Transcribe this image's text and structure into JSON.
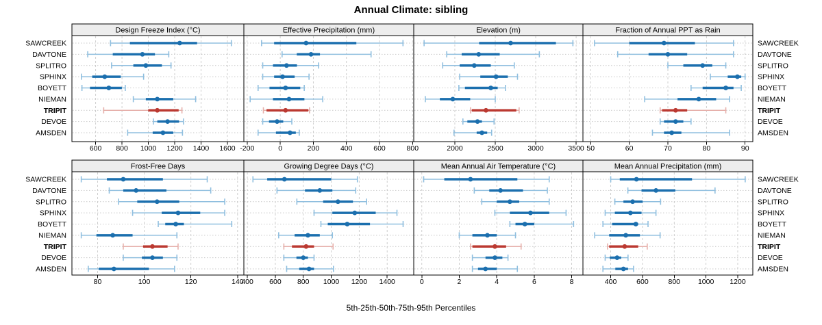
{
  "title": "Annual Climate: sibling",
  "caption": "5th-25th-50th-75th-95th Percentiles",
  "colors": {
    "series_blue": "#1b6fae",
    "series_blue_light": "#90bfdf",
    "highlight_red": "#bb3931",
    "highlight_red_light": "#e6b0ab",
    "grid": "#c9c9c9",
    "strip_bg": "#ededed",
    "panel_border": "#000000",
    "text": "#000000"
  },
  "chart_data": {
    "type": "dotplot-percentiles",
    "title": "Annual Climate: sibling",
    "caption": "5th-25th-50th-75th-95th Percentiles",
    "percentile_labels": [
      "5th",
      "25th",
      "50th",
      "75th",
      "95th"
    ],
    "legend_position": "none",
    "grid": "dashed",
    "stations": [
      "SAWCREEK",
      "DAVTONE",
      "SPLITRO",
      "SPHINX",
      "BOYETT",
      "NIEMAN",
      "TRIPIT",
      "DEVOE",
      "AMSDEN"
    ],
    "highlight_station": "TRIPIT",
    "panels": [
      {
        "title": "Design Freeze Index (°C)",
        "row": 0,
        "col": 0,
        "xlim": [
          420,
          1725
        ],
        "ticks": [
          600,
          800,
          1000,
          1200,
          1400,
          1600
        ],
        "values": [
          [
            713,
            860,
            1238,
            1370,
            1630
          ],
          [
            540,
            730,
            955,
            1050,
            1155
          ],
          [
            721,
            886,
            981,
            1103,
            1172
          ],
          [
            492,
            574,
            669,
            791,
            964
          ],
          [
            496,
            557,
            700,
            799,
            825
          ],
          [
            886,
            981,
            1068,
            1189,
            1359
          ],
          [
            661,
            999,
            1068,
            1230,
            1255
          ],
          [
            1038,
            1068,
            1146,
            1233,
            1267
          ],
          [
            843,
            1033,
            1111,
            1189,
            1259
          ]
        ]
      },
      {
        "title": "Effective Precipitation (mm)",
        "row": 0,
        "col": 1,
        "xlim": [
          -220,
          807
        ],
        "ticks": [
          -200,
          0,
          200,
          400,
          600,
          800
        ],
        "values": [
          [
            -113,
            -37,
            156,
            460,
            742
          ],
          [
            11,
            100,
            186,
            240,
            549
          ],
          [
            -106,
            -44,
            38,
            101,
            232
          ],
          [
            -106,
            -37,
            14,
            87,
            174
          ],
          [
            -134,
            -65,
            32,
            121,
            145
          ],
          [
            -182,
            -44,
            53,
            146,
            257
          ],
          [
            -102,
            -83,
            32,
            170,
            177
          ],
          [
            -106,
            -68,
            -19,
            18,
            70
          ],
          [
            -134,
            -26,
            59,
            94,
            115
          ]
        ]
      },
      {
        "title": "Elevation (m)",
        "row": 0,
        "col": 2,
        "xlim": [
          1492,
          3584
        ],
        "ticks": [
          2000,
          2500,
          3000,
          3500
        ],
        "values": [
          [
            1620,
            2300,
            2690,
            3250,
            3460
          ],
          [
            1900,
            2085,
            2295,
            2555,
            3045
          ],
          [
            1850,
            2060,
            2240,
            2445,
            2735
          ],
          [
            2060,
            2315,
            2510,
            2655,
            2775
          ],
          [
            2050,
            2125,
            2445,
            2530,
            2625
          ],
          [
            1635,
            1815,
            1975,
            2190,
            2500
          ],
          [
            2195,
            2210,
            2385,
            2760,
            2795
          ],
          [
            2100,
            2155,
            2280,
            2335,
            2485
          ],
          [
            1990,
            2270,
            2335,
            2400,
            2455
          ]
        ]
      },
      {
        "title": "Fraction of Annual PPT as Rain",
        "row": 0,
        "col": 3,
        "xlim": [
          48,
          92
        ],
        "ticks": [
          50,
          60,
          70,
          80,
          90
        ],
        "values": [
          [
            51,
            60,
            69,
            77,
            87
          ],
          [
            57,
            65,
            70,
            75,
            87
          ],
          [
            70,
            74,
            79,
            81.5,
            85
          ],
          [
            81,
            85.5,
            88,
            89,
            90
          ],
          [
            76,
            79,
            85,
            87,
            89
          ],
          [
            64,
            72.5,
            78,
            82.5,
            86
          ],
          [
            68,
            68.5,
            72,
            75,
            85
          ],
          [
            68,
            69,
            72,
            74,
            76
          ],
          [
            66,
            69,
            71,
            73.5,
            86
          ]
        ]
      },
      {
        "title": "Frost-Free Days",
        "row": 1,
        "col": 0,
        "xlim": [
          69,
          142.7
        ],
        "ticks": [
          80,
          100,
          120,
          140
        ],
        "values": [
          [
            73,
            84,
            91,
            108,
            127
          ],
          [
            85,
            91,
            96.5,
            109.5,
            128.5
          ],
          [
            89,
            97,
            105.5,
            115,
            134.5
          ],
          [
            95,
            107.5,
            114.5,
            124,
            134.5
          ],
          [
            106,
            109,
            113.5,
            117,
            137.5
          ],
          [
            73,
            79.5,
            86.5,
            95,
            114
          ],
          [
            91,
            99.5,
            103.5,
            110,
            114.5
          ],
          [
            91,
            99,
            103.5,
            108,
            114
          ],
          [
            76,
            80.5,
            87,
            102,
            113
          ]
        ]
      },
      {
        "title": "Growing Degree Days (°C)",
        "row": 1,
        "col": 1,
        "xlim": [
          375,
          1590
        ],
        "ticks": [
          400,
          600,
          800,
          1000,
          1200,
          1400
        ],
        "values": [
          [
            440,
            542,
            665,
            1000,
            1187
          ],
          [
            612,
            812,
            918,
            1008,
            1175
          ],
          [
            754,
            942,
            1048,
            1155,
            1253
          ],
          [
            877,
            1008,
            1168,
            1318,
            1470
          ],
          [
            926,
            975,
            1114,
            1277,
            1514
          ],
          [
            624,
            738,
            833,
            918,
            1008
          ],
          [
            661,
            719,
            820,
            877,
            1013
          ],
          [
            661,
            751,
            800,
            833,
            877
          ],
          [
            681,
            771,
            841,
            877,
            1016
          ]
        ]
      },
      {
        "title": "Mean Annual Air Temperature (°C)",
        "row": 1,
        "col": 2,
        "xlim": [
          -0.43,
          8.6
        ],
        "ticks": [
          0,
          2,
          4,
          6,
          8
        ],
        "values": [
          [
            0.1,
            1.2,
            2.6,
            5.1,
            6.8
          ],
          [
            2.8,
            3.6,
            4.2,
            5.4,
            6.7
          ],
          [
            3.2,
            4.0,
            4.7,
            5.2,
            6.8
          ],
          [
            3.9,
            4.7,
            5.8,
            6.8,
            7.7
          ],
          [
            4.7,
            5.0,
            5.5,
            6.0,
            8.1
          ],
          [
            2.0,
            2.7,
            3.5,
            4.0,
            5.0
          ],
          [
            2.6,
            2.7,
            3.9,
            4.5,
            5.3
          ],
          [
            2.7,
            3.4,
            3.9,
            4.3,
            4.6
          ],
          [
            2.7,
            3.0,
            3.4,
            4.0,
            5.1
          ]
        ]
      },
      {
        "title": "Mean Annual Precipitation (mm)",
        "row": 1,
        "col": 3,
        "xlim": [
          225,
          1295
        ],
        "ticks": [
          400,
          600,
          800,
          1000,
          1200
        ],
        "values": [
          [
            400,
            457,
            562,
            912,
            1247
          ],
          [
            508,
            594,
            685,
            807,
            1057
          ],
          [
            426,
            480,
            538,
            601,
            714
          ],
          [
            365,
            426,
            524,
            594,
            685
          ],
          [
            351,
            409,
            558,
            573,
            635
          ],
          [
            299,
            390,
            495,
            584,
            711
          ],
          [
            380,
            390,
            488,
            573,
            630
          ],
          [
            365,
            394,
            440,
            466,
            509
          ],
          [
            351,
            429,
            480,
            509,
            544
          ]
        ]
      }
    ]
  }
}
